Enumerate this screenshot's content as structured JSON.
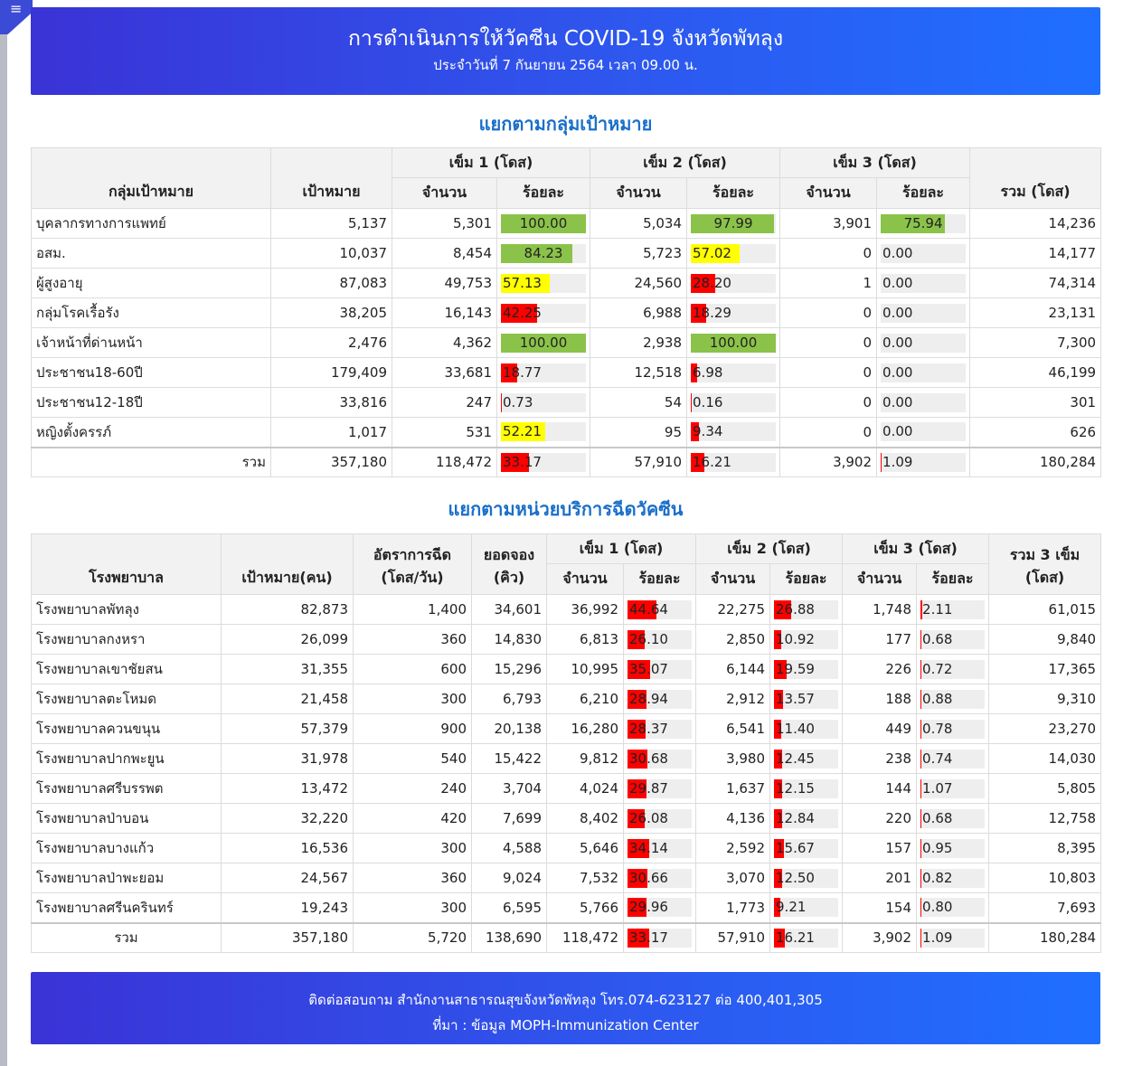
{
  "header": {
    "title": "การดำเนินการให้วัคซีน COVID-19 จังหวัดพัทลุง",
    "subtitle": "ประจำวันที่ 7 กันยายน 2564 เวลา 09.00 น."
  },
  "menu_icon": "hamburger-menu-icon",
  "colors": {
    "banner_start": "#3a33d6",
    "banner_end": "#1f6fff",
    "section_title": "#1a6fc9",
    "bar_green": "#8bc34a",
    "bar_yellow": "#ffff00",
    "bar_red": "#ff0000"
  },
  "section1": {
    "title": "แยกตามกลุ่มเป้าหมาย",
    "headers": {
      "group": "กลุ่มเป้าหมาย",
      "target": "เป้าหมาย",
      "dose1": "เข็ม 1 (โดส)",
      "dose2": "เข็ม 2 (โดส)",
      "dose3": "เข็ม 3 (โดส)",
      "count": "จำนวน",
      "percent": "ร้อยละ",
      "total": "รวม (โดส)"
    },
    "rows": [
      {
        "name": "บุคลากรทางการแพทย์",
        "target": "5,137",
        "d1": "5,301",
        "p1": "100.00",
        "d2": "5,034",
        "p2": "97.99",
        "d3": "3,901",
        "p3": "75.94",
        "total": "14,236"
      },
      {
        "name": "อสม.",
        "target": "10,037",
        "d1": "8,454",
        "p1": "84.23",
        "d2": "5,723",
        "p2": "57.02",
        "d3": "0",
        "p3": "0.00",
        "total": "14,177"
      },
      {
        "name": "ผู้สูงอายุ",
        "target": "87,083",
        "d1": "49,753",
        "p1": "57.13",
        "d2": "24,560",
        "p2": "28.20",
        "d3": "1",
        "p3": "0.00",
        "total": "74,314"
      },
      {
        "name": "กลุ่มโรคเรื้อรัง",
        "target": "38,205",
        "d1": "16,143",
        "p1": "42.25",
        "d2": "6,988",
        "p2": "18.29",
        "d3": "0",
        "p3": "0.00",
        "total": "23,131"
      },
      {
        "name": "เจ้าหน้าที่ด่านหน้า",
        "target": "2,476",
        "d1": "4,362",
        "p1": "100.00",
        "d2": "2,938",
        "p2": "100.00",
        "d3": "0",
        "p3": "0.00",
        "total": "7,300"
      },
      {
        "name": "ประชาชน18-60ปี",
        "target": "179,409",
        "d1": "33,681",
        "p1": "18.77",
        "d2": "12,518",
        "p2": "6.98",
        "d3": "0",
        "p3": "0.00",
        "total": "46,199"
      },
      {
        "name": "ประชาชน12-18ปี",
        "target": "33,816",
        "d1": "247",
        "p1": "0.73",
        "d2": "54",
        "p2": "0.16",
        "d3": "0",
        "p3": "0.00",
        "total": "301"
      },
      {
        "name": "หญิงตั้งครรภ์",
        "target": "1,017",
        "d1": "531",
        "p1": "52.21",
        "d2": "95",
        "p2": "9.34",
        "d3": "0",
        "p3": "0.00",
        "total": "626"
      }
    ],
    "total": {
      "label": "รวม",
      "target": "357,180",
      "d1": "118,472",
      "p1": "33.17",
      "d2": "57,910",
      "p2": "16.21",
      "d3": "3,902",
      "p3": "1.09",
      "total": "180,284"
    }
  },
  "section2": {
    "title": "แยกตามหน่วยบริการฉีดวัคซีน",
    "headers": {
      "hospital": "โรงพยาบาล",
      "target": "เป้าหมาย(คน)",
      "rate1": "อัตราการฉีด",
      "rate2": "(โดส/วัน)",
      "queue1": "ยอดจอง",
      "queue2": "(คิว)",
      "dose1": "เข็ม 1 (โดส)",
      "dose2": "เข็ม 2 (โดส)",
      "dose3": "เข็ม 3 (โดส)",
      "count": "จำนวน",
      "percent": "ร้อยละ",
      "total1": "รวม 3 เข็ม",
      "total2": "(โดส)"
    },
    "rows": [
      {
        "name": "โรงพยาบาลพัทลุง",
        "target": "82,873",
        "rate": "1,400",
        "queue": "34,601",
        "d1": "36,992",
        "p1": "44.64",
        "d2": "22,275",
        "p2": "26.88",
        "d3": "1,748",
        "p3": "2.11",
        "total": "61,015"
      },
      {
        "name": "โรงพยาบาลกงหรา",
        "target": "26,099",
        "rate": "360",
        "queue": "14,830",
        "d1": "6,813",
        "p1": "26.10",
        "d2": "2,850",
        "p2": "10.92",
        "d3": "177",
        "p3": "0.68",
        "total": "9,840"
      },
      {
        "name": "โรงพยาบาลเขาชัยสน",
        "target": "31,355",
        "rate": "600",
        "queue": "15,296",
        "d1": "10,995",
        "p1": "35.07",
        "d2": "6,144",
        "p2": "19.59",
        "d3": "226",
        "p3": "0.72",
        "total": "17,365"
      },
      {
        "name": "โรงพยาบาลตะโหมด",
        "target": "21,458",
        "rate": "300",
        "queue": "6,793",
        "d1": "6,210",
        "p1": "28.94",
        "d2": "2,912",
        "p2": "13.57",
        "d3": "188",
        "p3": "0.88",
        "total": "9,310"
      },
      {
        "name": "โรงพยาบาลควนขนุน",
        "target": "57,379",
        "rate": "900",
        "queue": "20,138",
        "d1": "16,280",
        "p1": "28.37",
        "d2": "6,541",
        "p2": "11.40",
        "d3": "449",
        "p3": "0.78",
        "total": "23,270"
      },
      {
        "name": "โรงพยาบาลปากพะยูน",
        "target": "31,978",
        "rate": "540",
        "queue": "15,422",
        "d1": "9,812",
        "p1": "30.68",
        "d2": "3,980",
        "p2": "12.45",
        "d3": "238",
        "p3": "0.74",
        "total": "14,030"
      },
      {
        "name": "โรงพยาบาลศรีบรรพต",
        "target": "13,472",
        "rate": "240",
        "queue": "3,704",
        "d1": "4,024",
        "p1": "29.87",
        "d2": "1,637",
        "p2": "12.15",
        "d3": "144",
        "p3": "1.07",
        "total": "5,805"
      },
      {
        "name": "โรงพยาบาลป่าบอน",
        "target": "32,220",
        "rate": "420",
        "queue": "7,699",
        "d1": "8,402",
        "p1": "26.08",
        "d2": "4,136",
        "p2": "12.84",
        "d3": "220",
        "p3": "0.68",
        "total": "12,758"
      },
      {
        "name": "โรงพยาบาลบางแก้ว",
        "target": "16,536",
        "rate": "300",
        "queue": "4,588",
        "d1": "5,646",
        "p1": "34.14",
        "d2": "2,592",
        "p2": "15.67",
        "d3": "157",
        "p3": "0.95",
        "total": "8,395"
      },
      {
        "name": "โรงพยาบาลป่าพะยอม",
        "target": "24,567",
        "rate": "360",
        "queue": "9,024",
        "d1": "7,532",
        "p1": "30.66",
        "d2": "3,070",
        "p2": "12.50",
        "d3": "201",
        "p3": "0.82",
        "total": "10,803"
      },
      {
        "name": "โรงพยาบาลศรีนครินทร์",
        "target": "19,243",
        "rate": "300",
        "queue": "6,595",
        "d1": "5,766",
        "p1": "29.96",
        "d2": "1,773",
        "p2": "9.21",
        "d3": "154",
        "p3": "0.80",
        "total": "7,693"
      }
    ],
    "total": {
      "label": "รวม",
      "target": "357,180",
      "rate": "5,720",
      "queue": "138,690",
      "d1": "118,472",
      "p1": "33.17",
      "d2": "57,910",
      "p2": "16.21",
      "d3": "3,902",
      "p3": "1.09",
      "total": "180,284"
    }
  },
  "footer": {
    "contact": "ติดต่อสอบถาม สำนักงานสาธารณสุขจังหวัดพัทลุง โทร.074-623127 ต่อ 400,401,305",
    "source": "ที่มา : ข้อมูล MOPH-Immunization Center"
  }
}
